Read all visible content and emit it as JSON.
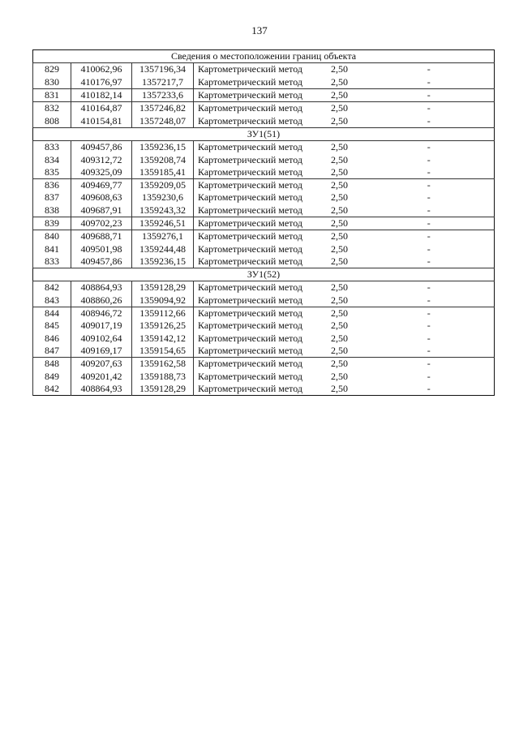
{
  "page_number": "137",
  "table": {
    "title": "Сведения о местоположении границ объекта",
    "blocks": [
      {
        "label": "",
        "rows": [
          [
            "829",
            "410062,96",
            "1357196,34",
            "Картометрический метод",
            "2,50",
            "-"
          ],
          [
            "830",
            "410176,97",
            "1357217,7",
            "Картометрический метод",
            "2,50",
            "-"
          ],
          [
            "831",
            "410182,14",
            "1357233,6",
            "Картометрический метод",
            "2,50",
            "-"
          ],
          [
            "832",
            "410164,87",
            "1357246,82",
            "Картометрический метод",
            "2,50",
            "-"
          ],
          [
            "808",
            "410154,81",
            "1357248,07",
            "Картометрический метод",
            "2,50",
            "-"
          ]
        ]
      },
      {
        "label": "ЗУ1(51)",
        "rows": [
          [
            "833",
            "409457,86",
            "1359236,15",
            "Картометрический метод",
            "2,50",
            "-"
          ],
          [
            "834",
            "409312,72",
            "1359208,74",
            "Картометрический метод",
            "2,50",
            "-"
          ],
          [
            "835",
            "409325,09",
            "1359185,41",
            "Картометрический метод",
            "2,50",
            "-"
          ],
          [
            "836",
            "409469,77",
            "1359209,05",
            "Картометрический метод",
            "2,50",
            "-"
          ],
          [
            "837",
            "409608,63",
            "1359230,6",
            "Картометрический метод",
            "2,50",
            "-"
          ],
          [
            "838",
            "409687,91",
            "1359243,32",
            "Картометрический метод",
            "2,50",
            "-"
          ],
          [
            "839",
            "409702,23",
            "1359246,51",
            "Картометрический метод",
            "2,50",
            "-"
          ],
          [
            "840",
            "409688,71",
            "1359276,1",
            "Картометрический метод",
            "2,50",
            "-"
          ],
          [
            "841",
            "409501,98",
            "1359244,48",
            "Картометрический метод",
            "2,50",
            "-"
          ],
          [
            "833",
            "409457,86",
            "1359236,15",
            "Картометрический метод",
            "2,50",
            "-"
          ]
        ]
      },
      {
        "label": "ЗУ1(52)",
        "rows": [
          [
            "842",
            "408864,93",
            "1359128,29",
            "Картометрический метод",
            "2,50",
            "-"
          ],
          [
            "843",
            "408860,26",
            "1359094,92",
            "Картометрический метод",
            "2,50",
            "-"
          ],
          [
            "844",
            "408946,72",
            "1359112,66",
            "Картометрический метод",
            "2,50",
            "-"
          ],
          [
            "845",
            "409017,19",
            "1359126,25",
            "Картометрический метод",
            "2,50",
            "-"
          ],
          [
            "846",
            "409102,64",
            "1359142,12",
            "Картометрический метод",
            "2,50",
            "-"
          ],
          [
            "847",
            "409169,17",
            "1359154,65",
            "Картометрический метод",
            "2,50",
            "-"
          ],
          [
            "848",
            "409207,63",
            "1359162,58",
            "Картометрический метод",
            "2,50",
            "-"
          ],
          [
            "849",
            "409201,42",
            "1359188,73",
            "Картометрический метод",
            "2,50",
            "-"
          ],
          [
            "842",
            "408864,93",
            "1359128,29",
            "Картометрический метод",
            "2,50",
            "-"
          ]
        ]
      }
    ]
  }
}
